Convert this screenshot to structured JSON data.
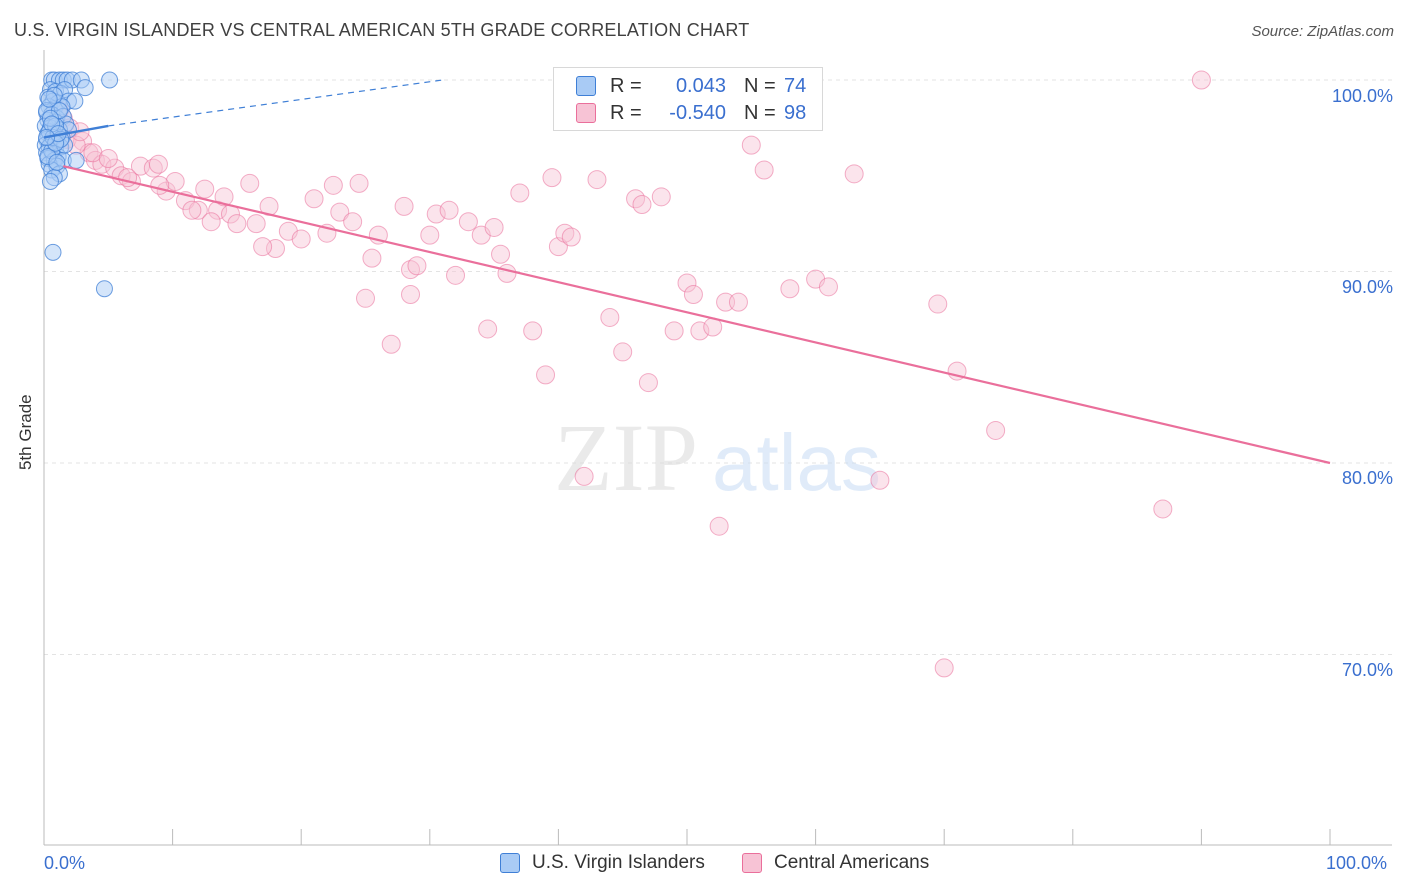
{
  "header": {
    "title": "U.S. VIRGIN ISLANDER VS CENTRAL AMERICAN 5TH GRADE CORRELATION CHART",
    "source": "Source: ZipAtlas.com"
  },
  "legend": {
    "r_label": "R =",
    "n_label": "N =",
    "rows": [
      {
        "r": "0.043",
        "n": "74"
      },
      {
        "r": "-0.540",
        "n": "98"
      }
    ]
  },
  "colors": {
    "blue": "#3f7fd6",
    "blue_fill": "#a9cbf5",
    "pink": "#ea6f9b",
    "pink_fill": "#f7c3d5",
    "grid": "#e3e3e3",
    "axis_text": "#3a6fcf"
  },
  "watermark": {
    "zip": "ZIP",
    "atlas": "atlas"
  },
  "chart_data": {
    "type": "scatter",
    "title": "U.S. VIRGIN ISLANDER VS CENTRAL AMERICAN 5TH GRADE CORRELATION CHART",
    "xlabel": "",
    "ylabel": "5th Grade",
    "xlim": [
      0,
      100
    ],
    "ylim": [
      60,
      101.5
    ],
    "x_tick_labels": [
      "0.0%",
      "100.0%"
    ],
    "y_ticks": [
      70,
      80,
      90,
      100
    ],
    "y_tick_labels": [
      "70.0%",
      "80.0%",
      "90.0%",
      "100.0%"
    ],
    "grid": true,
    "legend_position": "top-center",
    "series": [
      {
        "name": "U.S. Virgin Islanders",
        "color": "#3f7fd6",
        "r": 0.043,
        "n": 74,
        "trend": {
          "x0": 0.0,
          "y0": 97.0,
          "x1": 5.0,
          "y1": 97.6,
          "x_dash_end": 31.0,
          "y_dash_end": 100.0
        },
        "points": [
          [
            0.6,
            100
          ],
          [
            0.8,
            100
          ],
          [
            1.2,
            100
          ],
          [
            1.5,
            100
          ],
          [
            1.8,
            100
          ],
          [
            2.2,
            100
          ],
          [
            2.9,
            100
          ],
          [
            5.1,
            100
          ],
          [
            0.5,
            99.5
          ],
          [
            0.9,
            99.4
          ],
          [
            1.3,
            99.3
          ],
          [
            1.6,
            99.5
          ],
          [
            3.2,
            99.6
          ],
          [
            0.3,
            99.1
          ],
          [
            0.7,
            98.9
          ],
          [
            1.1,
            98.8
          ],
          [
            1.9,
            98.9
          ],
          [
            2.4,
            98.9
          ],
          [
            0.4,
            98.6
          ],
          [
            0.8,
            98.5
          ],
          [
            1.4,
            98.6
          ],
          [
            0.2,
            98.3
          ],
          [
            0.6,
            98.2
          ],
          [
            1.0,
            98.0
          ],
          [
            1.5,
            98.1
          ],
          [
            0.3,
            97.9
          ],
          [
            0.9,
            97.8
          ],
          [
            1.7,
            97.7
          ],
          [
            0.1,
            97.6
          ],
          [
            0.5,
            97.5
          ],
          [
            1.2,
            97.4
          ],
          [
            1.9,
            97.4
          ],
          [
            0.3,
            97.2
          ],
          [
            0.8,
            97.1
          ],
          [
            1.4,
            97.0
          ],
          [
            0.2,
            96.9
          ],
          [
            0.6,
            96.8
          ],
          [
            1.0,
            96.8
          ],
          [
            0.1,
            96.6
          ],
          [
            0.4,
            96.5
          ],
          [
            0.9,
            96.4
          ],
          [
            1.3,
            96.5
          ],
          [
            0.2,
            96.2
          ],
          [
            0.7,
            96.1
          ],
          [
            1.1,
            96.0
          ],
          [
            0.3,
            95.9
          ],
          [
            0.8,
            95.8
          ],
          [
            1.5,
            95.8
          ],
          [
            2.5,
            95.8
          ],
          [
            0.4,
            95.6
          ],
          [
            1.0,
            95.5
          ],
          [
            0.6,
            95.3
          ],
          [
            1.2,
            95.1
          ],
          [
            0.8,
            94.9
          ],
          [
            0.5,
            94.7
          ],
          [
            0.2,
            98.4
          ],
          [
            0.4,
            97.3
          ],
          [
            0.6,
            96.3
          ],
          [
            0.9,
            97.6
          ],
          [
            1.2,
            98.4
          ],
          [
            0.3,
            96.0
          ],
          [
            0.7,
            97.0
          ],
          [
            1.6,
            96.6
          ],
          [
            0.5,
            98.0
          ],
          [
            0.8,
            99.2
          ],
          [
            1.0,
            95.7
          ],
          [
            1.3,
            96.9
          ],
          [
            0.4,
            99.0
          ],
          [
            0.6,
            97.7
          ],
          [
            0.9,
            96.7
          ],
          [
            0.7,
            91.0
          ],
          [
            4.7,
            89.1
          ],
          [
            1.1,
            97.2
          ],
          [
            0.2,
            97.0
          ]
        ]
      },
      {
        "name": "Central Americans",
        "color": "#ea6f9b",
        "r": -0.54,
        "n": 98,
        "trend": {
          "x0": 1.5,
          "y0": 95.5,
          "x1": 100.0,
          "y1": 80.0
        },
        "points": [
          [
            1.2,
            98.4
          ],
          [
            1.5,
            98.0
          ],
          [
            2.0,
            97.5
          ],
          [
            1.8,
            96.9
          ],
          [
            3.0,
            96.8
          ],
          [
            3.5,
            96.2
          ],
          [
            4.0,
            95.8
          ],
          [
            2.5,
            96.6
          ],
          [
            4.5,
            95.6
          ],
          [
            5.5,
            95.4
          ],
          [
            6.0,
            95.0
          ],
          [
            6.8,
            94.7
          ],
          [
            7.5,
            95.5
          ],
          [
            8.5,
            95.4
          ],
          [
            8.9,
            95.6
          ],
          [
            9.5,
            94.2
          ],
          [
            10.2,
            94.7
          ],
          [
            11.0,
            93.7
          ],
          [
            12.0,
            93.2
          ],
          [
            12.5,
            94.3
          ],
          [
            13.5,
            93.2
          ],
          [
            14.0,
            93.9
          ],
          [
            14.5,
            93.0
          ],
          [
            15.0,
            92.5
          ],
          [
            16.0,
            94.6
          ],
          [
            16.5,
            92.5
          ],
          [
            17.5,
            93.4
          ],
          [
            18.0,
            91.2
          ],
          [
            19.0,
            92.1
          ],
          [
            20.0,
            91.7
          ],
          [
            21.0,
            93.8
          ],
          [
            22.0,
            92.0
          ],
          [
            22.5,
            94.5
          ],
          [
            23.0,
            93.1
          ],
          [
            24.0,
            92.6
          ],
          [
            24.5,
            94.6
          ],
          [
            25.5,
            90.7
          ],
          [
            26.0,
            91.9
          ],
          [
            27.0,
            86.2
          ],
          [
            28.0,
            93.4
          ],
          [
            28.5,
            90.1
          ],
          [
            29.0,
            90.3
          ],
          [
            30.0,
            91.9
          ],
          [
            30.5,
            93.0
          ],
          [
            31.5,
            93.2
          ],
          [
            32.0,
            89.8
          ],
          [
            33.0,
            92.6
          ],
          [
            34.0,
            91.9
          ],
          [
            35.0,
            92.3
          ],
          [
            35.5,
            90.9
          ],
          [
            36.0,
            89.9
          ],
          [
            37.0,
            94.1
          ],
          [
            38.0,
            86.9
          ],
          [
            39.0,
            84.6
          ],
          [
            39.5,
            94.9
          ],
          [
            40.0,
            91.3
          ],
          [
            40.5,
            92.0
          ],
          [
            41.0,
            91.8
          ],
          [
            42.0,
            79.3
          ],
          [
            43.0,
            94.8
          ],
          [
            44.0,
            87.6
          ],
          [
            45.0,
            85.8
          ],
          [
            46.0,
            93.8
          ],
          [
            46.5,
            93.5
          ],
          [
            47.0,
            84.2
          ],
          [
            48.0,
            93.9
          ],
          [
            49.0,
            86.9
          ],
          [
            50.0,
            89.4
          ],
          [
            50.5,
            88.8
          ],
          [
            51.0,
            86.9
          ],
          [
            52.0,
            87.1
          ],
          [
            52.5,
            76.7
          ],
          [
            53.0,
            88.4
          ],
          [
            54.0,
            88.4
          ],
          [
            55.0,
            96.6
          ],
          [
            56.0,
            95.3
          ],
          [
            58.0,
            89.1
          ],
          [
            60.0,
            89.6
          ],
          [
            61.0,
            89.2
          ],
          [
            63.0,
            95.1
          ],
          [
            65.0,
            79.1
          ],
          [
            69.5,
            88.3
          ],
          [
            70.0,
            69.3
          ],
          [
            71.0,
            84.8
          ],
          [
            74.0,
            81.7
          ],
          [
            87.0,
            77.6
          ],
          [
            90.0,
            100.0
          ],
          [
            25.0,
            88.6
          ],
          [
            34.5,
            87.0
          ],
          [
            17.0,
            91.3
          ],
          [
            28.5,
            88.8
          ],
          [
            13.0,
            92.6
          ],
          [
            9.0,
            94.5
          ],
          [
            3.8,
            96.2
          ],
          [
            2.8,
            97.3
          ],
          [
            5.0,
            95.9
          ],
          [
            6.5,
            94.9
          ],
          [
            11.5,
            93.2
          ]
        ]
      }
    ]
  }
}
